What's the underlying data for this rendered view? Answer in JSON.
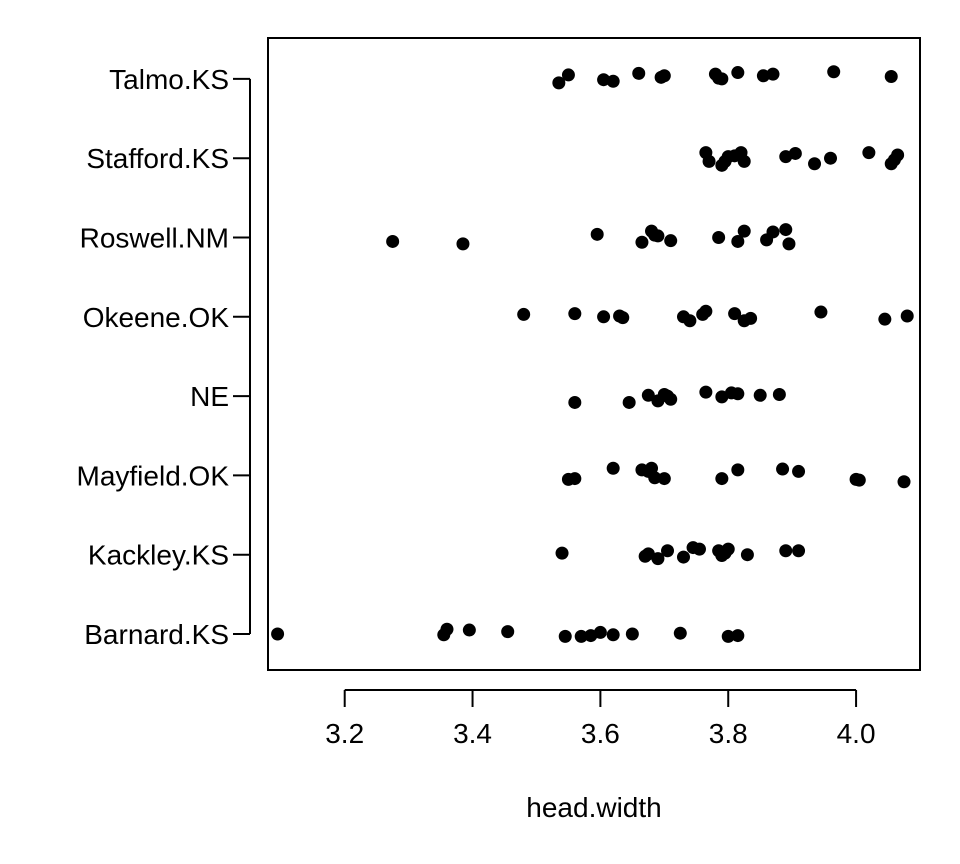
{
  "chart_data": {
    "type": "scatter",
    "title": "",
    "xlabel": "head.width",
    "ylabel": "",
    "xlim": [
      3.08,
      4.1
    ],
    "x_ticks": [
      3.2,
      3.4,
      3.6,
      3.8,
      4.0
    ],
    "x_tick_labels": [
      "3.2",
      "3.4",
      "3.6",
      "3.8",
      "4.0"
    ],
    "categories": [
      "Barnard.KS",
      "Kackley.KS",
      "Mayfield.OK",
      "NE",
      "Okeene.OK",
      "Roswell.NM",
      "Stafford.KS",
      "Talmo.KS"
    ],
    "grid": false,
    "legend": "none",
    "point_color": "#000000",
    "series": [
      {
        "category": "Barnard.KS",
        "points": [
          [
            3.095,
            0.0
          ],
          [
            3.355,
            -0.01
          ],
          [
            3.36,
            0.06
          ],
          [
            3.395,
            0.05
          ],
          [
            3.455,
            0.03
          ],
          [
            3.545,
            -0.03
          ],
          [
            3.57,
            -0.03
          ],
          [
            3.585,
            -0.02
          ],
          [
            3.6,
            0.02
          ],
          [
            3.62,
            -0.01
          ],
          [
            3.65,
            0.0
          ],
          [
            3.725,
            0.01
          ],
          [
            3.8,
            -0.03
          ],
          [
            3.815,
            -0.02
          ]
        ]
      },
      {
        "category": "Kackley.KS",
        "points": [
          [
            3.54,
            0.02
          ],
          [
            3.67,
            -0.02
          ],
          [
            3.675,
            0.01
          ],
          [
            3.69,
            -0.05
          ],
          [
            3.705,
            0.05
          ],
          [
            3.73,
            -0.03
          ],
          [
            3.745,
            0.09
          ],
          [
            3.755,
            0.07
          ],
          [
            3.785,
            0.05
          ],
          [
            3.79,
            -0.01
          ],
          [
            3.795,
            0.02
          ],
          [
            3.8,
            0.07
          ],
          [
            3.83,
            0.0
          ],
          [
            3.89,
            0.05
          ],
          [
            3.91,
            0.05
          ]
        ]
      },
      {
        "category": "Mayfield.OK",
        "points": [
          [
            3.55,
            -0.05
          ],
          [
            3.56,
            -0.04
          ],
          [
            3.62,
            0.09
          ],
          [
            3.665,
            0.07
          ],
          [
            3.675,
            0.05
          ],
          [
            3.68,
            0.09
          ],
          [
            3.685,
            -0.03
          ],
          [
            3.7,
            -0.04
          ],
          [
            3.79,
            -0.04
          ],
          [
            3.815,
            0.07
          ],
          [
            3.885,
            0.08
          ],
          [
            3.91,
            0.05
          ],
          [
            4.0,
            -0.05
          ],
          [
            4.005,
            -0.06
          ],
          [
            4.075,
            -0.08
          ]
        ]
      },
      {
        "category": "NE",
        "points": [
          [
            3.56,
            -0.08
          ],
          [
            3.645,
            -0.08
          ],
          [
            3.675,
            0.01
          ],
          [
            3.69,
            -0.06
          ],
          [
            3.7,
            0.02
          ],
          [
            3.705,
            0.0
          ],
          [
            3.71,
            -0.04
          ],
          [
            3.765,
            0.05
          ],
          [
            3.79,
            -0.01
          ],
          [
            3.805,
            0.04
          ],
          [
            3.815,
            0.03
          ],
          [
            3.85,
            0.01
          ],
          [
            3.88,
            0.02
          ]
        ]
      },
      {
        "category": "Okeene.OK",
        "points": [
          [
            3.48,
            0.03
          ],
          [
            3.56,
            0.04
          ],
          [
            3.605,
            0.0
          ],
          [
            3.63,
            0.01
          ],
          [
            3.635,
            -0.01
          ],
          [
            3.73,
            0.0
          ],
          [
            3.74,
            -0.05
          ],
          [
            3.76,
            0.03
          ],
          [
            3.765,
            0.07
          ],
          [
            3.81,
            0.04
          ],
          [
            3.825,
            -0.05
          ],
          [
            3.835,
            -0.02
          ],
          [
            3.945,
            0.06
          ],
          [
            4.045,
            -0.03
          ],
          [
            4.08,
            0.01
          ]
        ]
      },
      {
        "category": "Roswell.NM",
        "points": [
          [
            3.275,
            -0.05
          ],
          [
            3.385,
            -0.08
          ],
          [
            3.595,
            0.04
          ],
          [
            3.665,
            -0.06
          ],
          [
            3.68,
            0.08
          ],
          [
            3.685,
            0.03
          ],
          [
            3.69,
            0.02
          ],
          [
            3.71,
            -0.04
          ],
          [
            3.785,
            0.0
          ],
          [
            3.815,
            -0.05
          ],
          [
            3.825,
            0.08
          ],
          [
            3.86,
            -0.03
          ],
          [
            3.87,
            0.07
          ],
          [
            3.89,
            0.1
          ],
          [
            3.895,
            -0.08
          ]
        ]
      },
      {
        "category": "Stafford.KS",
        "points": [
          [
            3.765,
            0.07
          ],
          [
            3.77,
            -0.04
          ],
          [
            3.79,
            -0.09
          ],
          [
            3.795,
            -0.04
          ],
          [
            3.8,
            0.02
          ],
          [
            3.81,
            0.03
          ],
          [
            3.82,
            0.07
          ],
          [
            3.825,
            -0.04
          ],
          [
            3.89,
            0.02
          ],
          [
            3.905,
            0.06
          ],
          [
            3.935,
            -0.07
          ],
          [
            3.96,
            0.0
          ],
          [
            4.02,
            0.07
          ],
          [
            4.055,
            -0.07
          ],
          [
            4.06,
            -0.02
          ],
          [
            4.065,
            0.04
          ]
        ]
      },
      {
        "category": "Talmo.KS",
        "points": [
          [
            3.535,
            -0.05
          ],
          [
            3.55,
            0.05
          ],
          [
            3.605,
            -0.01
          ],
          [
            3.62,
            -0.03
          ],
          [
            3.66,
            0.07
          ],
          [
            3.695,
            0.02
          ],
          [
            3.7,
            0.04
          ],
          [
            3.78,
            0.06
          ],
          [
            3.785,
            0.01
          ],
          [
            3.79,
            0.0
          ],
          [
            3.815,
            0.08
          ],
          [
            3.855,
            0.04
          ],
          [
            3.87,
            0.06
          ],
          [
            3.965,
            0.09
          ],
          [
            4.055,
            0.03
          ]
        ]
      }
    ]
  }
}
